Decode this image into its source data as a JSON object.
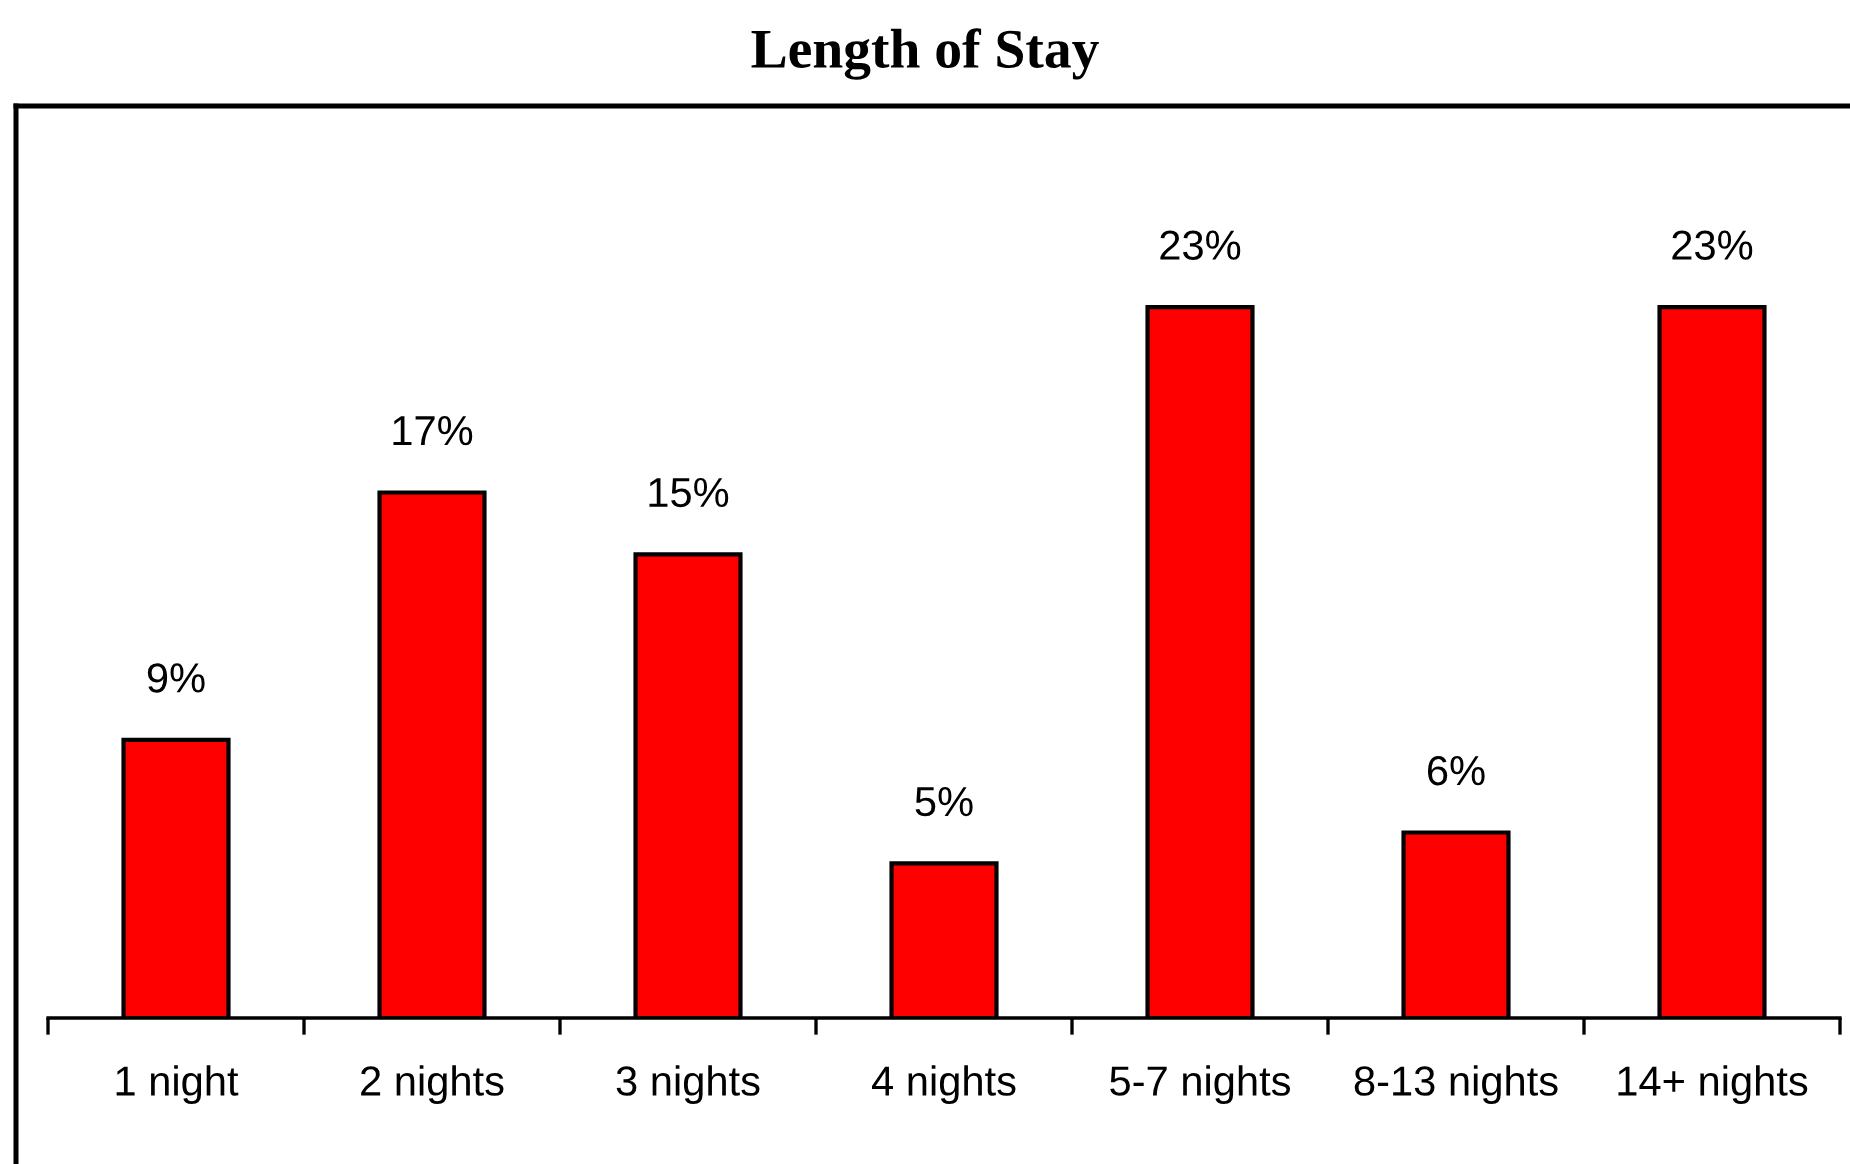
{
  "chart_data": {
    "type": "bar",
    "title": "Length of Stay",
    "categories": [
      "1 night",
      "2 nights",
      "3 nights",
      "4 nights",
      "5-7 nights",
      "8-13 nights",
      "14+ nights"
    ],
    "values": [
      9,
      17,
      15,
      5,
      23,
      6,
      23
    ],
    "color": "#ff0000",
    "value_labels": [
      "9%",
      "17%",
      "15%",
      "5%",
      "23%",
      "6%",
      "23%"
    ]
  }
}
